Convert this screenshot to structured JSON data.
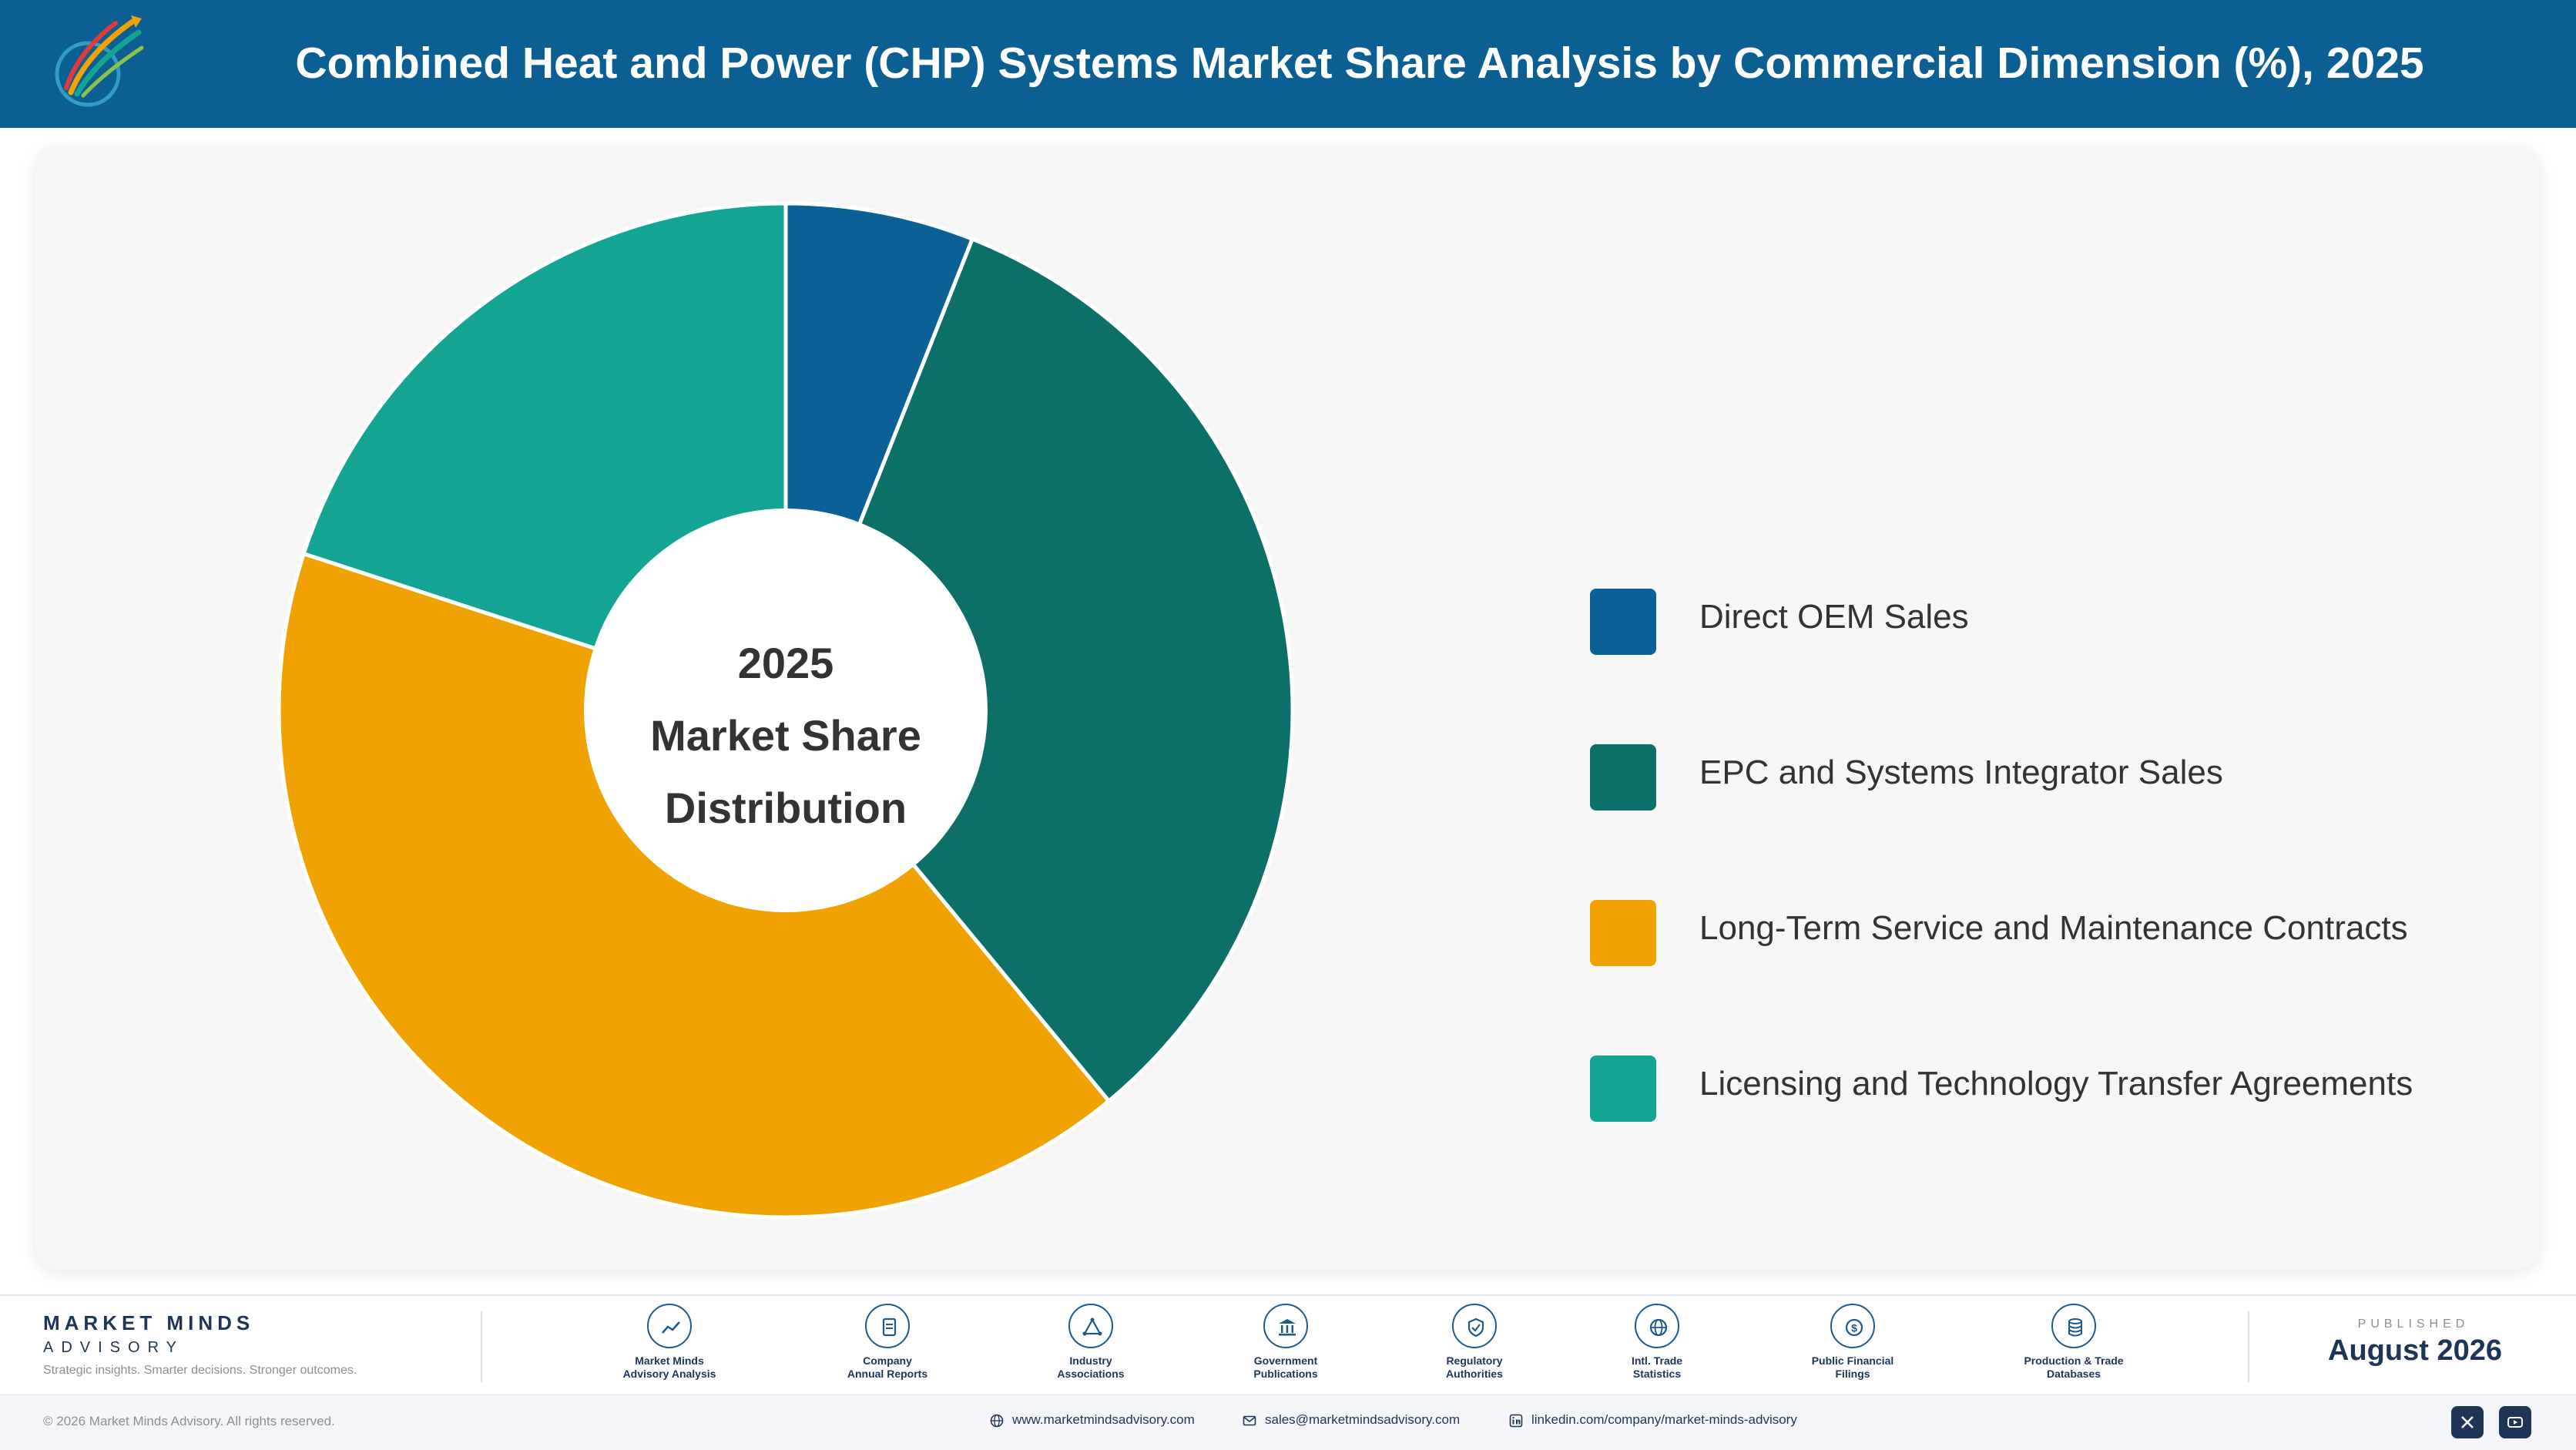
{
  "header": {
    "title": "Combined Heat and Power (CHP) Systems Market Share Analysis by Commercial Dimension (%), 2025",
    "logo_icon": "market-minds-logo-icon",
    "logo_text": "Market Minds Advisory"
  },
  "chart_data": {
    "type": "pie",
    "variant": "donut",
    "center_text": [
      "2025",
      "Market Share",
      "Distribution"
    ],
    "categories": [
      "Direct OEM Sales",
      "EPC and Systems Integrator Sales",
      "Long-Term Service and Maintenance Contracts",
      "Licensing and Technology Transfer Agreements"
    ],
    "values": [
      6,
      33,
      41,
      20
    ],
    "unit": "%",
    "colors": [
      "#0b6196",
      "#0d7068",
      "#f0a300",
      "#13a494"
    ],
    "legend_position": "right",
    "start_angle": "12 o'clock",
    "direction": "clockwise"
  },
  "footer": {
    "brand_name": "MARKET MINDS",
    "brand_sub": "ADVISORY",
    "tagline": "Strategic insights. Smarter decisions. Stronger outcomes.",
    "sources": [
      {
        "label": "Market Minds\nAdvisory Analysis",
        "icon": "trend-line-icon"
      },
      {
        "label": "Company\nAnnual Reports",
        "icon": "document-icon"
      },
      {
        "label": "Industry\nAssociations",
        "icon": "network-icon"
      },
      {
        "label": "Government\nPublications",
        "icon": "government-building-icon"
      },
      {
        "label": "Regulatory\nAuthorities",
        "icon": "shield-check-icon"
      },
      {
        "label": "Intl. Trade\nStatistics",
        "icon": "globe-icon"
      },
      {
        "label": "Public Financial\nFilings",
        "icon": "dollar-coin-icon"
      },
      {
        "label": "Production & Trade\nDatabases",
        "icon": "database-icon"
      }
    ],
    "published_label": "PUBLISHED",
    "published_date": "August 2026"
  },
  "bottom_bar": {
    "copyright": "© 2026 Market Minds Advisory. All rights reserved.",
    "website": "www.marketmindsadvisory.com",
    "email": "sales@marketmindsadvisory.com",
    "linkedin": "linkedin.com/company/market-minds-advisory",
    "social_icons": [
      "x-icon",
      "youtube-icon"
    ]
  }
}
